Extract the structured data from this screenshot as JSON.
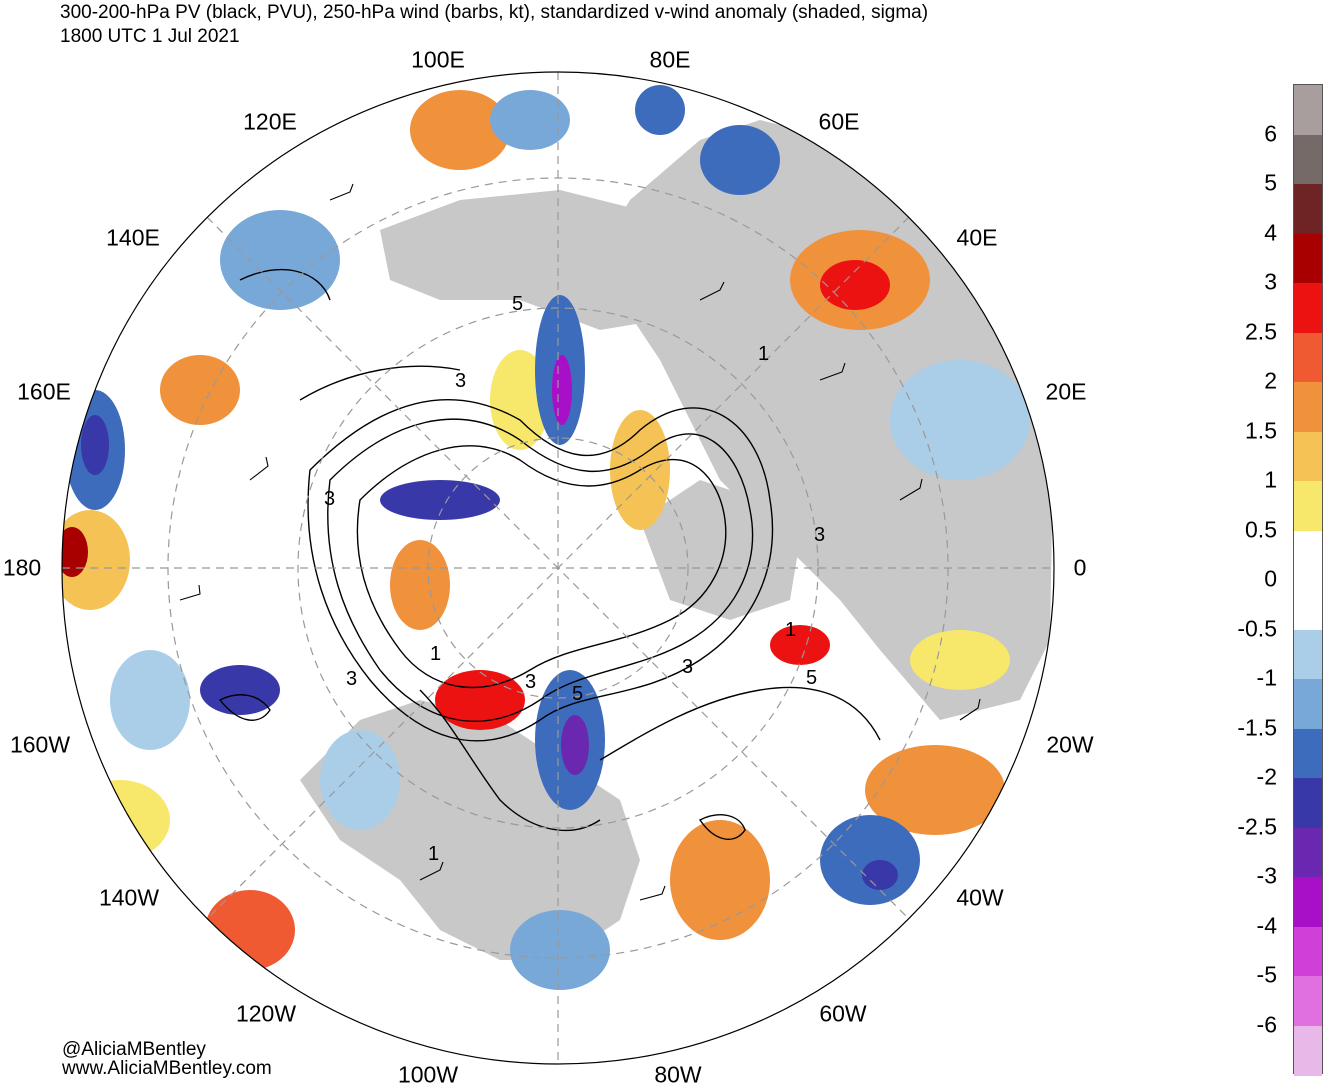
{
  "header": {
    "title_line1": "300-200-hPa PV (black, PVU), 250-hPa wind (barbs, kt), standardized v-wind anomaly (shaded, sigma)",
    "title_line2": "1800 UTC 1 Jul 2021"
  },
  "map": {
    "projection": "north-polar-stereographic",
    "longitude_labels": [
      "100E",
      "80E",
      "120E",
      "60E",
      "140E",
      "40E",
      "160E",
      "20E",
      "180",
      "0",
      "160W",
      "20W",
      "140W",
      "40W",
      "120W",
      "60W",
      "100W",
      "80W"
    ],
    "contour_labels": [
      "1",
      "3",
      "5",
      "3",
      "3",
      "1",
      "3",
      "5",
      "3",
      "5",
      "1",
      "3",
      "1"
    ],
    "colors": {
      "land": "#c8c8c8",
      "ocean": "#ffffff",
      "pv_contours": "#000000"
    }
  },
  "credits": {
    "twitter": "@AliciaMBentley",
    "website": "www.AliciaMBentley.com"
  },
  "colorbar": {
    "labels": [
      "6",
      "5",
      "4",
      "3",
      "2.5",
      "2",
      "1.5",
      "1",
      "0.5",
      "0",
      "-0.5",
      "-1",
      "-1.5",
      "-2",
      "-2.5",
      "-3",
      "-4",
      "-5",
      "-6"
    ],
    "colors": [
      "#a89e9e",
      "#756a68",
      "#6e2424",
      "#a80000",
      "#ed1212",
      "#f05a32",
      "#f0913c",
      "#f5c355",
      "#f7e86b",
      "#ffffff",
      "#ffffff",
      "#aacde8",
      "#78a8d8",
      "#3e6cbc",
      "#3838a8",
      "#6a28b0",
      "#a810c8",
      "#d040d8",
      "#e070e0",
      "#e8b8e8"
    ]
  }
}
